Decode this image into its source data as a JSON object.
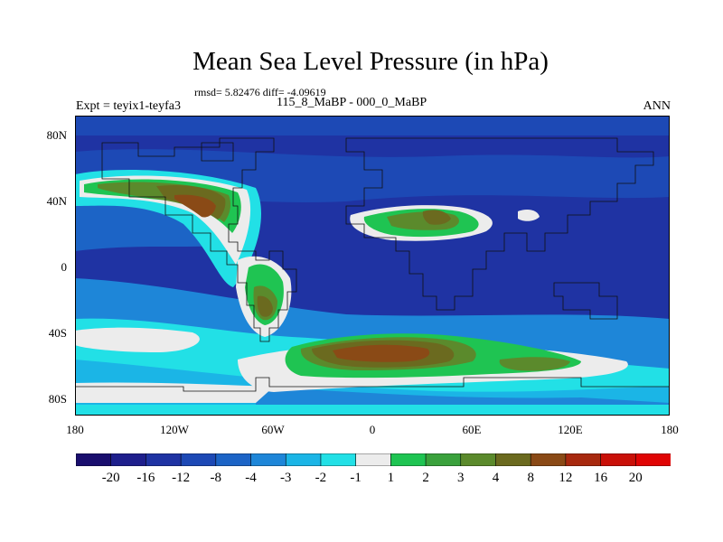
{
  "title": "Mean Sea Level Pressure (in hPa)",
  "stats_text": "rmsd= 5.82476 diff= -4.09619",
  "left_label": "Expt = teyix1-teyfa3",
  "center_label": "115_8_MaBP - 000_0_MaBP",
  "right_label": "ANN",
  "lat_ticks": [
    "80N",
    "40N",
    "0",
    "40S",
    "80S"
  ],
  "lon_ticks": [
    "180",
    "120W",
    "60W",
    "0",
    "60E",
    "120E",
    "180"
  ],
  "colorbar": {
    "labels": [
      "-20",
      "-16",
      "-12",
      "-8",
      "-4",
      "-3",
      "-2",
      "-1",
      "1",
      "2",
      "3",
      "4",
      "8",
      "12",
      "16",
      "20"
    ],
    "colors": [
      "#1a0e6e",
      "#1e1f8c",
      "#1f33a3",
      "#1d49b5",
      "#1c64c6",
      "#1e86d8",
      "#1bb5e6",
      "#22e0e6",
      "#ececec",
      "#1fc452",
      "#3aa13c",
      "#5b8a2c",
      "#6b6a1f",
      "#8a4a16",
      "#a8290f",
      "#c91008",
      "#e00404"
    ]
  }
}
